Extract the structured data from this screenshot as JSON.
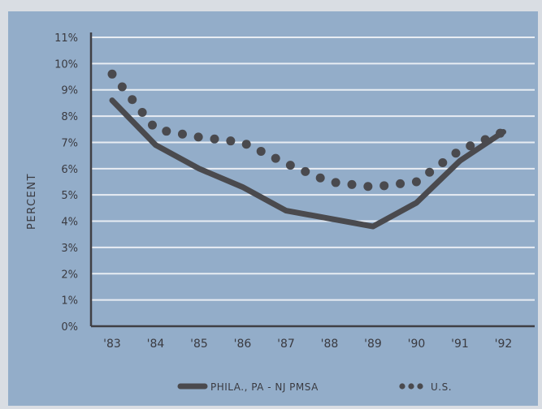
{
  "chart_data": {
    "type": "line",
    "title": "",
    "xlabel": "",
    "ylabel": "PERCENT",
    "ylim": [
      0,
      11
    ],
    "y_ticks": [
      "0%",
      "1%",
      "2%",
      "3%",
      "4%",
      "5%",
      "6%",
      "7%",
      "8%",
      "9%",
      "10%",
      "11%"
    ],
    "categories": [
      "'83",
      "'84",
      "'85",
      "'86",
      "'87",
      "'88",
      "'89",
      "'90",
      "'91",
      "'92"
    ],
    "grid": true,
    "legend_position": "bottom",
    "series": [
      {
        "name": "PHILA., PA - NJ PMSA",
        "style": "solid",
        "color": "#4a4a4e",
        "values": [
          8.6,
          6.9,
          6.0,
          5.3,
          4.4,
          4.1,
          3.8,
          4.7,
          6.3,
          7.4
        ]
      },
      {
        "name": "U.S.",
        "style": "dotted",
        "color": "#4a4a4e",
        "values": [
          9.6,
          7.5,
          7.2,
          7.0,
          6.2,
          5.5,
          5.3,
          5.5,
          6.7,
          7.4
        ]
      }
    ]
  },
  "colors": {
    "panel": "#93adc9",
    "grid": "#e8edf3",
    "axis": "#3f3f44",
    "text": "#3a3a40",
    "outer": "#d9dde3"
  }
}
